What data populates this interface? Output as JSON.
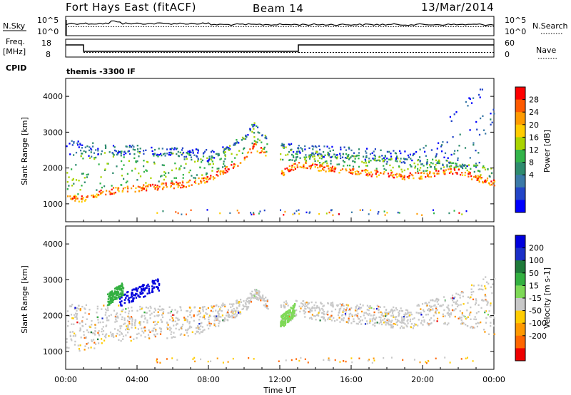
{
  "header": {
    "station": "Fort Hays East (fitACF)",
    "beam": "Beam 14",
    "date": "13/Mar/2014"
  },
  "top_panels": {
    "nsky_label": "N.Sky",
    "nsearch_label": "N.Search",
    "noise_ticks": [
      "10^5",
      "10^0"
    ],
    "freq_label": "Freq.",
    "freq_unit": "[MHz]",
    "freq_ticks": [
      "18",
      "8"
    ],
    "nave_label": "Nave",
    "nave_ticks": [
      "60",
      "0"
    ],
    "cpid_label": "CPID",
    "cpid_value": "themis -3300 IF"
  },
  "colorbars": {
    "power": {
      "label": "Power [dB]",
      "ticks": [
        "28",
        "24",
        "20",
        "16",
        "12",
        "8",
        "4"
      ],
      "colors": [
        "#ff0000",
        "#ff5a00",
        "#ff9a00",
        "#ffcc00",
        "#aad400",
        "#33b44a",
        "#2e8b6e",
        "#3b7aa8",
        "#2345c8",
        "#0000ff"
      ]
    },
    "velocity": {
      "label": "Velocity [m s-1]",
      "ticks": [
        "200",
        "100",
        "50",
        "15",
        "-15",
        "-50",
        "-100",
        "-200"
      ],
      "colors": [
        "#0000dd",
        "#1a2fc8",
        "#1f7a3a",
        "#33b040",
        "#7ed957",
        "#c8c8c8",
        "#ffcc00",
        "#ff9900",
        "#ff6600",
        "#ee0000"
      ]
    }
  },
  "chart_data": [
    {
      "type": "heatmap",
      "name": "power",
      "ylabel": "Slant Range [km]",
      "ylim": [
        500,
        4500
      ],
      "yticks": [
        "4000",
        "3000",
        "2000",
        "1000"
      ],
      "xlim_hours": [
        0,
        24
      ],
      "bands": [
        {
          "level": "high",
          "x": [
            0,
            1,
            1.5,
            2,
            3,
            4,
            5,
            6,
            7,
            8,
            9,
            10,
            10.5,
            11,
            12,
            13,
            14,
            15,
            16,
            17,
            18,
            19,
            20,
            21,
            22,
            23,
            24
          ],
          "range_km": [
            1200,
            1100,
            1150,
            1300,
            1380,
            1420,
            1460,
            1500,
            1560,
            1700,
            1950,
            2200,
            2600,
            2450,
            1800,
            2100,
            2000,
            1950,
            1900,
            1850,
            1800,
            1750,
            1780,
            1850,
            1900,
            1700,
            1550
          ]
        },
        {
          "level": "mid",
          "x": [
            0,
            2,
            4,
            6,
            8,
            10,
            10.5,
            11,
            13,
            16,
            19,
            21,
            22,
            24
          ],
          "range_km": [
            2300,
            2350,
            2400,
            2350,
            2200,
            2800,
            3200,
            2900,
            2400,
            2250,
            2150,
            2100,
            2050,
            1900
          ]
        },
        {
          "level": "low",
          "x": [
            0,
            2,
            4,
            6,
            8,
            10,
            13,
            16,
            19,
            22,
            24
          ],
          "range_km": [
            2800,
            2700,
            2650,
            2600,
            2550,
            2700,
            2700,
            2600,
            2500,
            3000,
            3800
          ]
        }
      ]
    },
    {
      "type": "heatmap",
      "name": "velocity",
      "ylabel": "Slant Range [km]",
      "xlabel": "Time UT",
      "ylim": [
        500,
        4500
      ],
      "yticks": [
        "4000",
        "3000",
        "2000",
        "1000"
      ],
      "xticks": [
        "00:00",
        "04:00",
        "08:00",
        "12:00",
        "16:00",
        "20:00",
        "00:00"
      ],
      "xlim_hours": [
        0,
        24
      ],
      "features": [
        {
          "kind": "ground-scatter",
          "x_start": 0,
          "x_end": 24,
          "range_km": [
            1100,
            2700
          ],
          "velocity": 0
        },
        {
          "kind": "patch",
          "x_start": 3.0,
          "x_end": 5.2,
          "range_km": [
            2300,
            3050
          ],
          "velocity": 220
        },
        {
          "kind": "patch",
          "x_start": 2.3,
          "x_end": 3.2,
          "range_km": [
            2350,
            2900
          ],
          "velocity": 30
        },
        {
          "kind": "patch",
          "x_start": 12.0,
          "x_end": 12.8,
          "range_km": [
            1700,
            2300
          ],
          "velocity": 25
        }
      ]
    }
  ]
}
